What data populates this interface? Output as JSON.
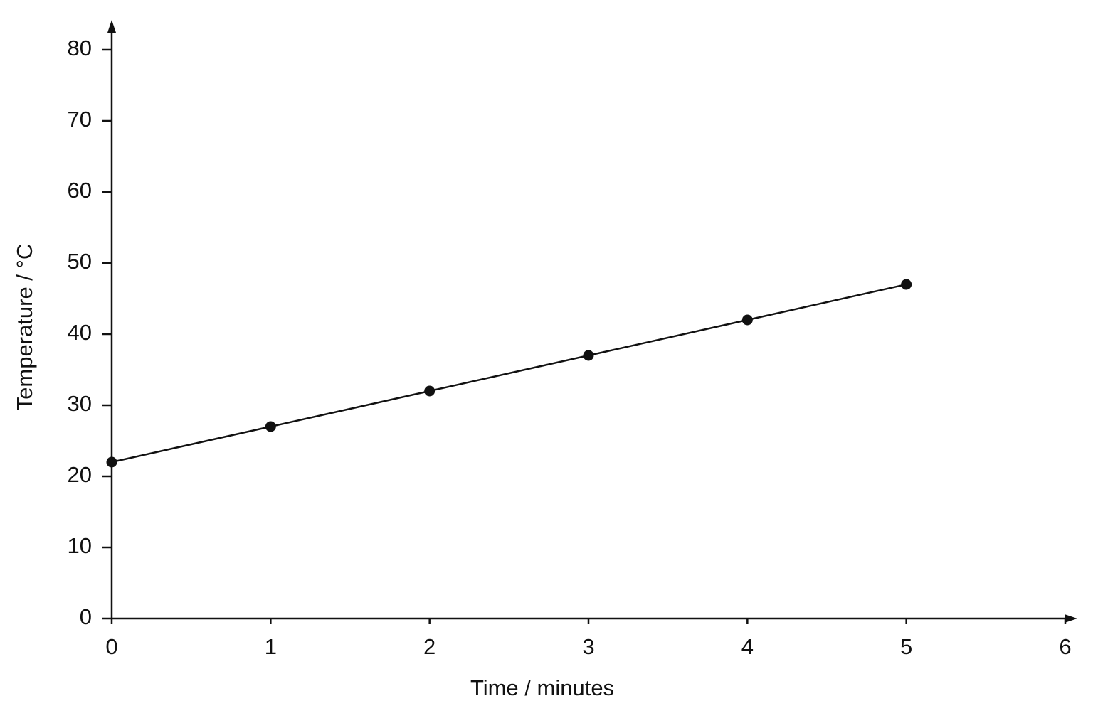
{
  "chart_data": {
    "type": "line",
    "x_label": "Time / minutes",
    "y_label": "Temperature / °C",
    "x": [
      0,
      1,
      2,
      3,
      4,
      5
    ],
    "series": [
      {
        "color": "#111111",
        "values": [
          22,
          27,
          32,
          37,
          42,
          47
        ]
      }
    ],
    "xlim": [
      0,
      6
    ],
    "xticks": [
      0,
      1,
      2,
      3,
      4,
      5,
      6
    ],
    "ylim": [
      0,
      80
    ],
    "yticks": [
      0,
      10,
      20,
      30,
      40,
      50,
      60,
      70,
      80
    ],
    "grid": false,
    "markers": true
  }
}
